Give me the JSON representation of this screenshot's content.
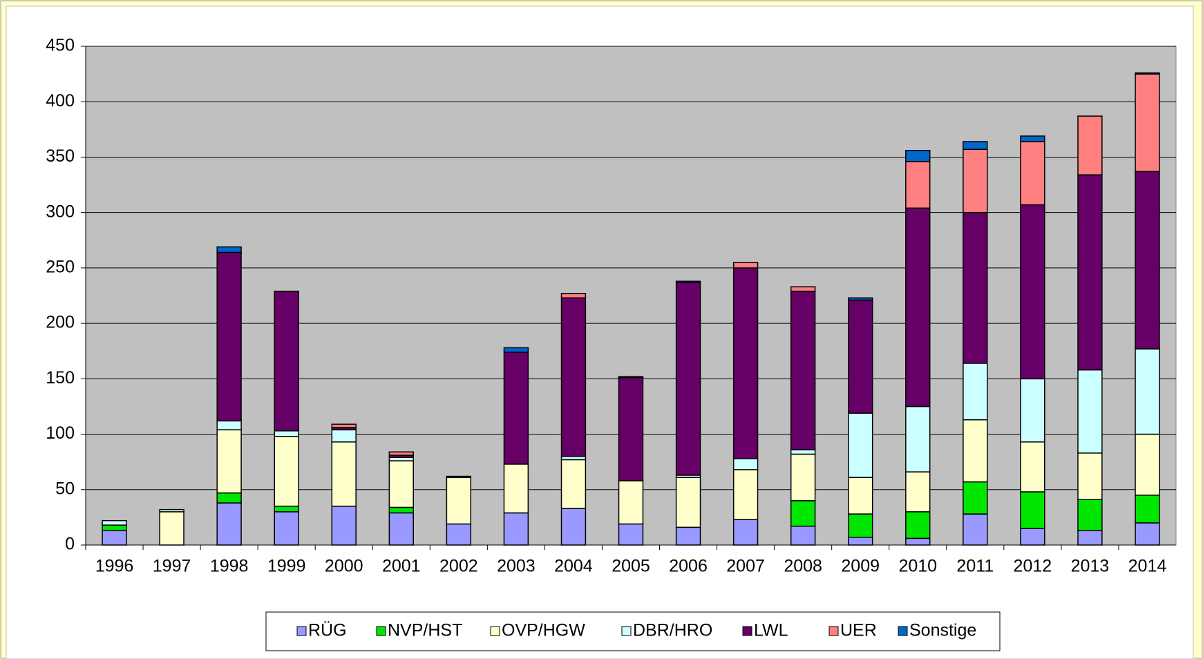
{
  "chart_data": {
    "type": "bar",
    "stacked": true,
    "categories": [
      "1996",
      "1997",
      "1998",
      "1999",
      "2000",
      "2001",
      "2002",
      "2003",
      "2004",
      "2005",
      "2006",
      "2007",
      "2008",
      "2009",
      "2010",
      "2011",
      "2012",
      "2013",
      "2014"
    ],
    "series": [
      {
        "name": "RÜG",
        "color": "#9999ff",
        "values": [
          13,
          0,
          38,
          30,
          35,
          29,
          19,
          29,
          33,
          19,
          16,
          23,
          17,
          7,
          6,
          28,
          15,
          13,
          20
        ]
      },
      {
        "name": "NVP/HST",
        "color": "#00e600",
        "values": [
          5,
          0,
          9,
          5,
          0,
          5,
          0,
          0,
          0,
          0,
          0,
          0,
          23,
          21,
          24,
          29,
          33,
          28,
          25
        ]
      },
      {
        "name": "OVP/HGW",
        "color": "#ffffcc",
        "values": [
          0,
          30,
          57,
          63,
          58,
          42,
          42,
          44,
          44,
          39,
          45,
          45,
          42,
          33,
          36,
          56,
          45,
          42,
          55
        ]
      },
      {
        "name": "DBR/HRO",
        "color": "#ccffff",
        "values": [
          4,
          2,
          8,
          5,
          11,
          3,
          1,
          0,
          3,
          0,
          2,
          10,
          4,
          58,
          59,
          51,
          57,
          75,
          77
        ]
      },
      {
        "name": "LWL",
        "color": "#660066",
        "values": [
          0,
          0,
          152,
          126,
          2,
          2,
          0,
          101,
          143,
          93,
          174,
          172,
          143,
          102,
          179,
          136,
          157,
          176,
          160
        ]
      },
      {
        "name": "UER",
        "color": "#ff8080",
        "values": [
          0,
          0,
          0,
          0,
          3,
          3,
          0,
          0,
          4,
          1,
          0,
          5,
          4,
          0,
          42,
          57,
          57,
          53,
          88
        ]
      },
      {
        "name": "Sonstige",
        "color": "#0066cc",
        "values": [
          0,
          0,
          5,
          0,
          0,
          0,
          0,
          4,
          0,
          0,
          1,
          0,
          0,
          2,
          10,
          7,
          5,
          0,
          1
        ]
      }
    ],
    "ylim": [
      0,
      450
    ],
    "yticks": [
      0,
      50,
      100,
      150,
      200,
      250,
      300,
      350,
      400,
      450
    ],
    "grid": true,
    "legend": "bottom"
  }
}
